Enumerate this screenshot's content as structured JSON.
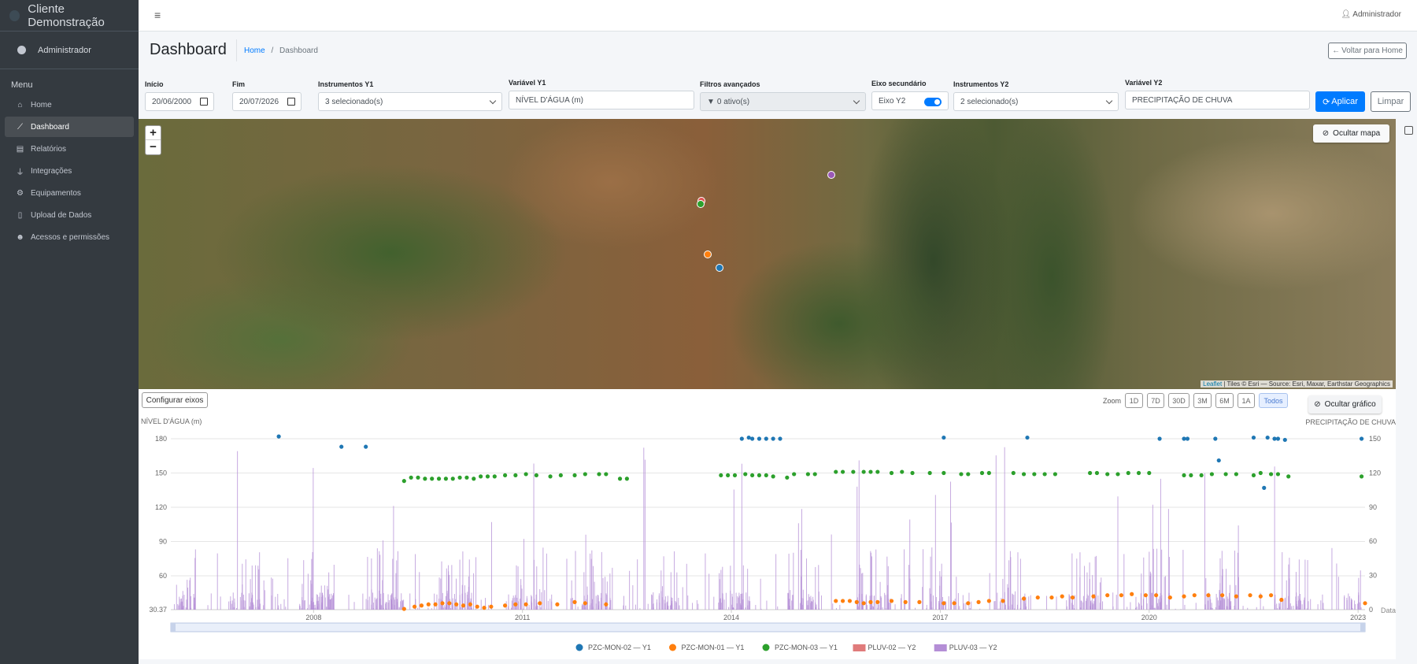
{
  "brand": {
    "name": "Cliente Demonstração"
  },
  "sidebar": {
    "user": "Administrador",
    "menu_header": "Menu",
    "items": [
      {
        "label": "Home",
        "icon": "home-icon"
      },
      {
        "label": "Dashboard",
        "icon": "chart-line-icon",
        "active": true
      },
      {
        "label": "Relatórios",
        "icon": "report-icon"
      },
      {
        "label": "Integrações",
        "icon": "plug-icon"
      },
      {
        "label": "Equipamentos",
        "icon": "cog-icon"
      },
      {
        "label": "Upload de Dados",
        "icon": "file-upload-icon"
      },
      {
        "label": "Acessos e permissões",
        "icon": "users-cog-icon"
      }
    ]
  },
  "topbar": {
    "user": "Administrador"
  },
  "header": {
    "title": "Dashboard",
    "breadcrumb": {
      "home": "Home",
      "sep": "/",
      "current": "Dashboard"
    },
    "back_button": "Voltar para Home"
  },
  "filters": {
    "start": {
      "label": "Início",
      "value": "20/06/2000"
    },
    "end": {
      "label": "Fim",
      "value": "20/07/2026"
    },
    "instruments_y1": {
      "label": "Instrumentos Y1",
      "value": "3 selecionado(s)"
    },
    "variable_y1": {
      "label": "Variável Y1",
      "value": "NÍVEL D'ÁGUA (m)"
    },
    "advanced": {
      "label": "Filtros avançados",
      "value": "0 ativo(s)"
    },
    "secondary_axis": {
      "label": "Eixo secundário",
      "value": "Eixo Y2",
      "enabled": true
    },
    "instruments_y2": {
      "label": "Instrumentos Y2",
      "value": "2 selecionado(s)"
    },
    "variable_y2": {
      "label": "Variável Y2",
      "value": "PRECIPITAÇÃO DE CHUVA"
    },
    "apply_button": "Aplicar",
    "clear_button": "Limpar"
  },
  "map": {
    "zoom_in": "+",
    "zoom_out": "−",
    "hide_button": "Ocultar mapa",
    "attribution_leaflet": "Leaflet",
    "attribution_rest": " | Tiles © Esri — Source: Esri, Maxar, Earthstar Geographics",
    "marker_colors": [
      "#9b59b6",
      "#e05555",
      "#2ca02c",
      "#ff7f0e",
      "#1f77b4"
    ]
  },
  "chart_controls": {
    "config_button": "Configurar eixos",
    "zoom_label": "Zoom",
    "zoom_options": [
      "1D",
      "7D",
      "30D",
      "3M",
      "6M",
      "1A",
      "Todos"
    ],
    "zoom_active": "Todos",
    "hide_button": "Ocultar gráfico"
  },
  "chart_data": {
    "type": "scatter",
    "ylabel": "NÍVEL D'ÁGUA (m)",
    "y2label": "PRECIPITAÇÃO DE CHUVA",
    "xlabel": "Data",
    "x_range": [
      2005.95,
      2023.1
    ],
    "x_ticks": [
      "2008",
      "2011",
      "2014",
      "2017",
      "2020",
      "2023"
    ],
    "ylim": [
      30.37,
      180
    ],
    "y_ticks": [
      "30.37",
      "60",
      "90",
      "120",
      "150",
      "180"
    ],
    "y2lim": [
      0,
      150
    ],
    "y2_ticks": [
      "0",
      "30",
      "60",
      "90",
      "120",
      "150"
    ],
    "grid": true,
    "legend_position": "bottom",
    "series": [
      {
        "name": "PZC-MON-02 — Y1",
        "color": "#1f77b4",
        "kind": "points",
        "x": [
          2007.5,
          2008.4,
          2008.75,
          2014.15,
          2014.25,
          2014.3,
          2014.4,
          2014.5,
          2014.6,
          2014.7,
          2017.05,
          2018.25,
          2020.15,
          2020.5,
          2020.55,
          2020.95,
          2021.0,
          2021.5,
          2021.65,
          2021.7,
          2021.8,
          2021.85,
          2021.95,
          2023.05
        ],
        "y": [
          182,
          173,
          173,
          180,
          181,
          180,
          180,
          180,
          180,
          180,
          181,
          181,
          180,
          180,
          180,
          180,
          161,
          181,
          137,
          181,
          180,
          180,
          179,
          180
        ]
      },
      {
        "name": "PZC-MON-01 — Y1",
        "color": "#ff7f0e",
        "kind": "points",
        "x": [
          2009.3,
          2009.45,
          2009.55,
          2009.65,
          2009.75,
          2009.85,
          2009.95,
          2010.05,
          2010.15,
          2010.25,
          2010.35,
          2010.45,
          2010.55,
          2010.75,
          2010.9,
          2011.05,
          2011.25,
          2011.5,
          2011.75,
          2011.9,
          2012.2,
          2015.5,
          2015.6,
          2015.7,
          2015.8,
          2015.9,
          2016.0,
          2016.1,
          2016.3,
          2016.5,
          2016.7,
          2017.05,
          2017.2,
          2017.4,
          2017.55,
          2017.7,
          2017.9,
          2018.2,
          2018.4,
          2018.6,
          2018.75,
          2018.9,
          2019.2,
          2019.4,
          2019.6,
          2019.75,
          2019.95,
          2020.1,
          2020.3,
          2020.5,
          2020.65,
          2020.85,
          2021.05,
          2021.25,
          2021.45,
          2021.6,
          2021.75,
          2021.9,
          2023.1
        ],
        "y": [
          31,
          33,
          34,
          35,
          35,
          36,
          36,
          35,
          34,
          35,
          33,
          32,
          33,
          34,
          35,
          35,
          36,
          35,
          37,
          36,
          35,
          38,
          38,
          38,
          37,
          36,
          37,
          37,
          38,
          37,
          37,
          36,
          36,
          36,
          37,
          38,
          38,
          40,
          41,
          41,
          42,
          41,
          42,
          43,
          43,
          44,
          43,
          43,
          41,
          42,
          43,
          43,
          43,
          42,
          43,
          42,
          43,
          39,
          36
        ]
      },
      {
        "name": "PZC-MON-03 — Y1",
        "color": "#2ca02c",
        "kind": "points",
        "x": [
          2009.3,
          2009.4,
          2009.5,
          2009.6,
          2009.7,
          2009.8,
          2009.9,
          2010.0,
          2010.1,
          2010.2,
          2010.3,
          2010.4,
          2010.5,
          2010.6,
          2010.75,
          2010.9,
          2011.05,
          2011.2,
          2011.4,
          2011.55,
          2011.75,
          2011.9,
          2012.1,
          2012.2,
          2012.4,
          2012.5,
          2013.85,
          2013.95,
          2014.05,
          2014.2,
          2014.3,
          2014.4,
          2014.5,
          2014.6,
          2014.8,
          2014.9,
          2015.1,
          2015.2,
          2015.5,
          2015.6,
          2015.75,
          2015.9,
          2016.0,
          2016.1,
          2016.3,
          2016.45,
          2016.6,
          2016.85,
          2017.05,
          2017.3,
          2017.4,
          2017.6,
          2017.7,
          2018.05,
          2018.2,
          2018.35,
          2018.5,
          2018.65,
          2019.15,
          2019.25,
          2019.4,
          2019.55,
          2019.7,
          2019.85,
          2020.0,
          2020.5,
          2020.6,
          2020.75,
          2020.9,
          2021.1,
          2021.25,
          2021.5,
          2021.6,
          2021.75,
          2021.85,
          2022.0,
          2023.05
        ],
        "y": [
          143,
          146,
          146,
          145,
          145,
          145,
          145,
          145,
          146,
          146,
          145,
          147,
          147,
          147,
          148,
          148,
          149,
          148,
          147,
          148,
          148,
          149,
          149,
          149,
          145,
          145,
          148,
          148,
          148,
          149,
          148,
          148,
          148,
          147,
          146,
          149,
          149,
          149,
          151,
          151,
          151,
          151,
          151,
          151,
          150,
          151,
          150,
          150,
          150,
          149,
          149,
          150,
          150,
          150,
          149,
          149,
          149,
          149,
          150,
          150,
          149,
          149,
          150,
          150,
          150,
          148,
          148,
          148,
          149,
          149,
          149,
          148,
          150,
          149,
          149,
          147,
          147
        ]
      }
    ],
    "rain_series": [
      {
        "name": "PLUV-02 — Y2",
        "color": "#e07b7b",
        "kind": "bars"
      },
      {
        "name": "PLUV-03 — Y2",
        "color": "#b48ed6",
        "kind": "bars"
      }
    ]
  }
}
